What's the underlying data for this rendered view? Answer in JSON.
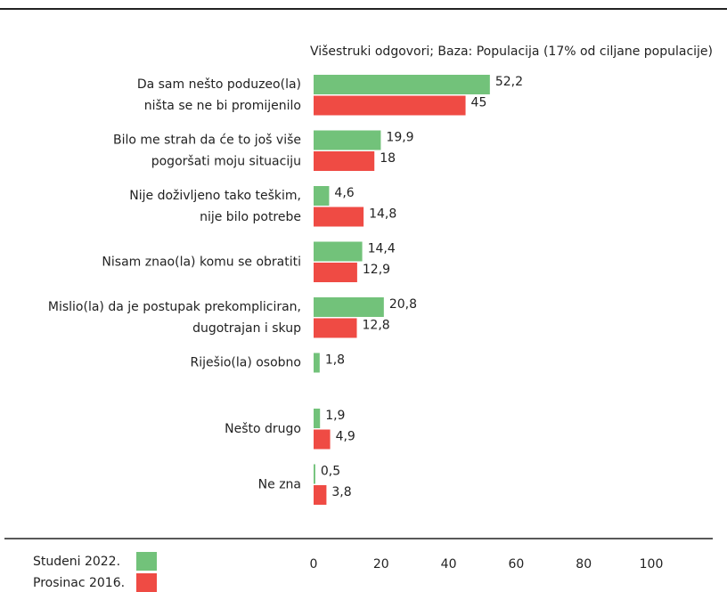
{
  "chart_data": {
    "type": "bar",
    "orientation": "horizontal",
    "subtitle": "Višestruki odgovori; Baza: Populacija (17% od ciljane populacije)",
    "categories": [
      [
        "Da sam nešto poduzeo(la)",
        "ništa se ne bi promijenilo"
      ],
      [
        "Bilo me strah da će to još više",
        "pogoršati moju situaciju"
      ],
      [
        "Nije doživljeno tako teškim,",
        "nije bilo potrebe"
      ],
      [
        "Nisam znao(la) komu se obratiti"
      ],
      [
        "Mislio(la) da je postupak prekompliciran,",
        "dugotrajan i skup"
      ],
      [
        "Riješio(la) osobno"
      ],
      [
        "Nešto drugo"
      ],
      [
        "Ne zna"
      ]
    ],
    "series": [
      {
        "name": "Studeni 2022.",
        "color": "#72c27a",
        "values": [
          52.2,
          19.9,
          4.6,
          14.4,
          20.8,
          1.8,
          1.9,
          0.5
        ],
        "value_labels": [
          "52,2",
          "19,9",
          "4,6",
          "14,4",
          "20,8",
          "1,8",
          "1,9",
          "0,5"
        ]
      },
      {
        "name": "Prosinac 2016.",
        "color": "#ef4b44",
        "values": [
          45,
          18,
          14.8,
          12.9,
          12.8,
          null,
          4.9,
          3.8
        ],
        "value_labels": [
          "45",
          "18",
          "14,8",
          "12,9",
          "12,8",
          null,
          "4,9",
          "3,8"
        ]
      }
    ],
    "xlim": [
      0,
      100
    ],
    "xticks": [
      0,
      20,
      40,
      60,
      80,
      100
    ]
  }
}
